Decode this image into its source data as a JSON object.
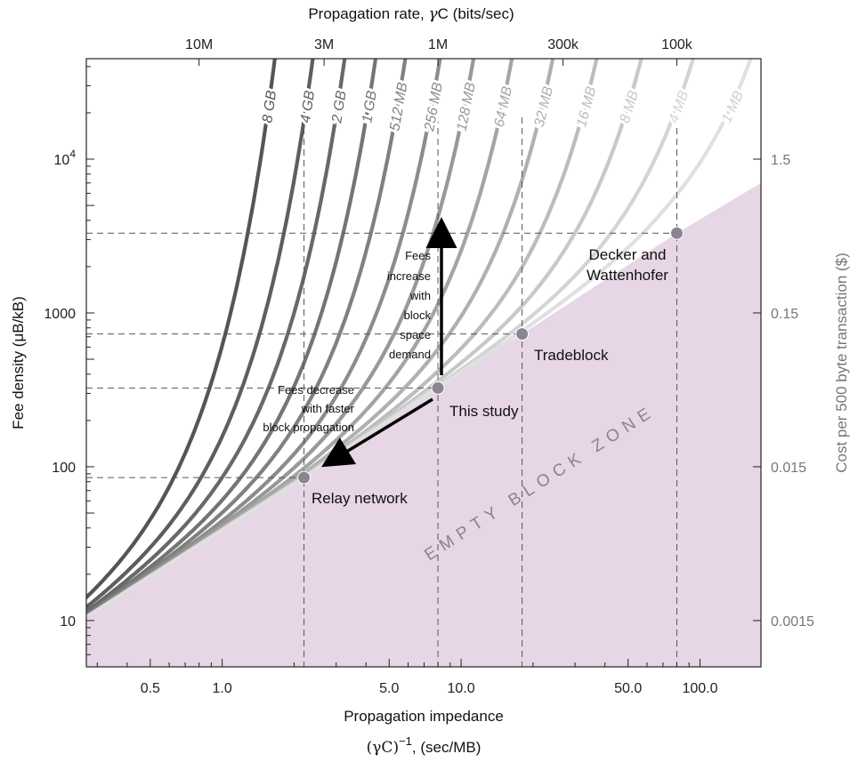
{
  "chart_data": {
    "type": "line",
    "title": "",
    "x_axis": {
      "label_line1": "Propagation impedance",
      "label_line2_part1": "(γC)",
      "label_line2_sup": "−1",
      "label_line2_part2": ", (sec/MB)",
      "scale": "log",
      "range": [
        0.27,
        180
      ],
      "ticks": [
        {
          "value": 0.5,
          "label": "0.5"
        },
        {
          "value": 1.0,
          "label": "1.0"
        },
        {
          "value": 5.0,
          "label": "5.0"
        },
        {
          "value": 10.0,
          "label": "10.0"
        },
        {
          "value": 50.0,
          "label": "50.0"
        },
        {
          "value": 100.0,
          "label": "100.0"
        }
      ]
    },
    "top_axis": {
      "label_part1": "Propagation rate, ",
      "label_gamma": "γ",
      "label_part2": "C (bits/sec)",
      "ticks": [
        {
          "value": 0.8,
          "label": "10M"
        },
        {
          "value": 2.67,
          "label": "3M"
        },
        {
          "value": 8.0,
          "label": "1M"
        },
        {
          "value": 26.7,
          "label": "300k"
        },
        {
          "value": 80.0,
          "label": "100k"
        }
      ]
    },
    "y_axis": {
      "label": "Fee density (μB/kB)",
      "scale": "log",
      "range": [
        5,
        45000
      ],
      "ticks": [
        {
          "value": 10,
          "label": "10",
          "base": "",
          "exp": ""
        },
        {
          "value": 100,
          "label": "100",
          "base": "",
          "exp": ""
        },
        {
          "value": 1000,
          "label": "1000",
          "base": "",
          "exp": ""
        },
        {
          "value": 10000,
          "label": "",
          "base": "10",
          "exp": "4"
        }
      ]
    },
    "right_axis": {
      "label": "Cost per 500 byte transaction ($)",
      "ticks": [
        {
          "value": 10,
          "label": "0.0015"
        },
        {
          "value": 100,
          "label": "0.015"
        },
        {
          "value": 1000,
          "label": "0.15"
        },
        {
          "value": 10000,
          "label": "1.5"
        }
      ]
    },
    "empty_block_zone": {
      "label": "EMPTY BLOCK ZONE",
      "boundary": [
        [
          0.27,
          10.5
        ],
        [
          2.2,
          85
        ],
        [
          8.0,
          325
        ],
        [
          18.0,
          730
        ],
        [
          80.0,
          3300
        ],
        [
          180,
          7000
        ]
      ],
      "color": "#e6d6e6"
    },
    "series": [
      {
        "name": "8 GB",
        "color": "#555555",
        "anchor": 0.55
      },
      {
        "name": "4 GB",
        "color": "#5e5e5e",
        "anchor": 0.82
      },
      {
        "name": "2 GB",
        "color": "#686868",
        "anchor": 1.15
      },
      {
        "name": "1 GB",
        "color": "#747474",
        "anchor": 1.6
      },
      {
        "name": "512 MB",
        "color": "#808080",
        "anchor": 2.2
      },
      {
        "name": "256 MB",
        "color": "#8c8c8c",
        "anchor": 3.2
      },
      {
        "name": "128 MB",
        "color": "#989898",
        "anchor": 4.6
      },
      {
        "name": "64 MB",
        "color": "#a4a4a4",
        "anchor": 7.0
      },
      {
        "name": "32 MB",
        "color": "#b0b0b0",
        "anchor": 11.0
      },
      {
        "name": "16 MB",
        "color": "#bcbcbc",
        "anchor": 18.0
      },
      {
        "name": "8 MB",
        "color": "#c8c8c8",
        "anchor": 30.0
      },
      {
        "name": "4 MB",
        "color": "#d4d4d4",
        "anchor": 55.0
      },
      {
        "name": "1 MB",
        "color": "#e0e0e0",
        "anchor": 110.0
      }
    ],
    "points": [
      {
        "name": "Relay network",
        "x": 2.2,
        "y": 85
      },
      {
        "name": "This study",
        "x": 8.0,
        "y": 325
      },
      {
        "name": "Tradeblock",
        "x": 18.0,
        "y": 730
      },
      {
        "name": "Decker and Wattenhofer",
        "x": 80.0,
        "y": 3300
      }
    ],
    "annotations": {
      "fees_increase": [
        "Fees",
        "increase",
        "with",
        "block",
        "space",
        "demand"
      ],
      "fees_decrease": [
        "Fees decrease",
        "with faster",
        "block propagation"
      ],
      "decker_lines": [
        "Decker and",
        "Wattenhofer"
      ]
    },
    "grid": "dashed at points"
  }
}
